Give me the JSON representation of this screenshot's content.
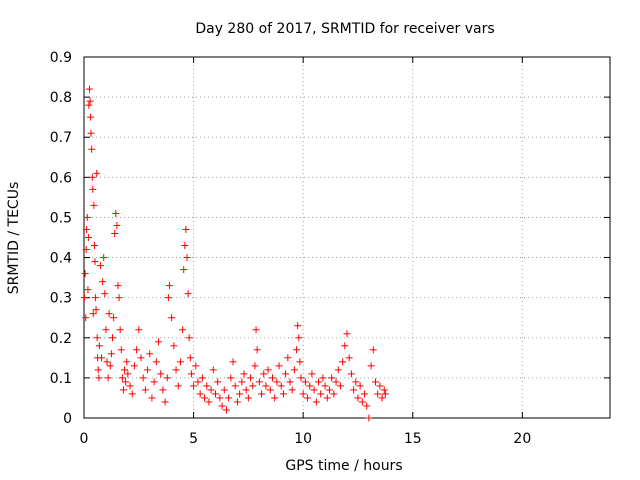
{
  "chart_data": {
    "type": "scatter",
    "title": "Day 280 of 2017, SRMTID for receiver vars",
    "xlabel": "GPS time / hours",
    "ylabel": "SRMTID / TECUs",
    "xlim": [
      0,
      24
    ],
    "ylim": [
      0,
      0.9
    ],
    "xticks": [
      0,
      5,
      10,
      15,
      20
    ],
    "yticks": [
      0,
      0.1,
      0.2,
      0.3,
      0.4,
      0.5,
      0.6,
      0.7,
      0.8,
      0.9
    ],
    "grid": true,
    "marker": "plus",
    "color": "#ff0000",
    "series": [
      {
        "name": "SRMTID",
        "points": [
          [
            0.02,
            0.3
          ],
          [
            0.05,
            0.36
          ],
          [
            0.08,
            0.25
          ],
          [
            0.1,
            0.42
          ],
          [
            0.12,
            0.47
          ],
          [
            0.15,
            0.5
          ],
          [
            0.18,
            0.32
          ],
          [
            0.2,
            0.45
          ],
          [
            0.22,
            0.78
          ],
          [
            0.25,
            0.82
          ],
          [
            0.28,
            0.79
          ],
          [
            0.3,
            0.75
          ],
          [
            0.32,
            0.71
          ],
          [
            0.35,
            0.67
          ],
          [
            0.38,
            0.6
          ],
          [
            0.4,
            0.57
          ],
          [
            0.42,
            0.26
          ],
          [
            0.45,
            0.53
          ],
          [
            0.48,
            0.43
          ],
          [
            0.5,
            0.39
          ],
          [
            0.52,
            0.3
          ],
          [
            0.55,
            0.27
          ],
          [
            0.58,
            0.61
          ],
          [
            0.6,
            0.2
          ],
          [
            0.62,
            0.15
          ],
          [
            0.65,
            0.12
          ],
          [
            0.68,
            0.1
          ],
          [
            0.7,
            0.18
          ],
          [
            0.75,
            0.38
          ],
          [
            0.8,
            0.15
          ],
          [
            0.85,
            0.34
          ],
          [
            0.9,
            0.4
          ],
          [
            0.95,
            0.31
          ],
          [
            1.0,
            0.22
          ],
          [
            1.05,
            0.14
          ],
          [
            1.1,
            0.1
          ],
          [
            1.15,
            0.26
          ],
          [
            1.2,
            0.13
          ],
          [
            1.25,
            0.16
          ],
          [
            1.3,
            0.2
          ],
          [
            1.35,
            0.25
          ],
          [
            1.4,
            0.46
          ],
          [
            1.45,
            0.51
          ],
          [
            1.5,
            0.48
          ],
          [
            1.55,
            0.33
          ],
          [
            1.6,
            0.3
          ],
          [
            1.65,
            0.22
          ],
          [
            1.7,
            0.17
          ],
          [
            1.75,
            0.1
          ],
          [
            1.8,
            0.07
          ],
          [
            1.85,
            0.12
          ],
          [
            1.9,
            0.09
          ],
          [
            1.95,
            0.14
          ],
          [
            2.0,
            0.11
          ],
          [
            2.1,
            0.08
          ],
          [
            2.2,
            0.06
          ],
          [
            2.3,
            0.13
          ],
          [
            2.4,
            0.17
          ],
          [
            2.5,
            0.22
          ],
          [
            2.6,
            0.15
          ],
          [
            2.7,
            0.1
          ],
          [
            2.8,
            0.07
          ],
          [
            2.9,
            0.12
          ],
          [
            3.0,
            0.16
          ],
          [
            3.1,
            0.05
          ],
          [
            3.2,
            0.09
          ],
          [
            3.3,
            0.14
          ],
          [
            3.4,
            0.19
          ],
          [
            3.5,
            0.11
          ],
          [
            3.6,
            0.07
          ],
          [
            3.7,
            0.04
          ],
          [
            3.8,
            0.1
          ],
          [
            3.85,
            0.3
          ],
          [
            3.9,
            0.33
          ],
          [
            4.0,
            0.25
          ],
          [
            4.1,
            0.18
          ],
          [
            4.2,
            0.12
          ],
          [
            4.3,
            0.08
          ],
          [
            4.4,
            0.14
          ],
          [
            4.5,
            0.22
          ],
          [
            4.55,
            0.37
          ],
          [
            4.6,
            0.43
          ],
          [
            4.65,
            0.47
          ],
          [
            4.7,
            0.4
          ],
          [
            4.75,
            0.31
          ],
          [
            4.8,
            0.2
          ],
          [
            4.85,
            0.15
          ],
          [
            4.9,
            0.11
          ],
          [
            5.0,
            0.08
          ],
          [
            5.1,
            0.13
          ],
          [
            5.2,
            0.09
          ],
          [
            5.3,
            0.06
          ],
          [
            5.4,
            0.1
          ],
          [
            5.5,
            0.05
          ],
          [
            5.6,
            0.08
          ],
          [
            5.7,
            0.04
          ],
          [
            5.8,
            0.07
          ],
          [
            5.9,
            0.12
          ],
          [
            6.0,
            0.06
          ],
          [
            6.1,
            0.09
          ],
          [
            6.2,
            0.05
          ],
          [
            6.3,
            0.03
          ],
          [
            6.4,
            0.07
          ],
          [
            6.5,
            0.02
          ],
          [
            6.6,
            0.05
          ],
          [
            6.7,
            0.1
          ],
          [
            6.8,
            0.14
          ],
          [
            6.9,
            0.08
          ],
          [
            7.0,
            0.04
          ],
          [
            7.1,
            0.06
          ],
          [
            7.2,
            0.09
          ],
          [
            7.3,
            0.11
          ],
          [
            7.4,
            0.07
          ],
          [
            7.5,
            0.05
          ],
          [
            7.6,
            0.1
          ],
          [
            7.7,
            0.08
          ],
          [
            7.8,
            0.13
          ],
          [
            7.85,
            0.22
          ],
          [
            7.9,
            0.17
          ],
          [
            8.0,
            0.09
          ],
          [
            8.1,
            0.06
          ],
          [
            8.2,
            0.11
          ],
          [
            8.3,
            0.08
          ],
          [
            8.4,
            0.12
          ],
          [
            8.5,
            0.07
          ],
          [
            8.6,
            0.1
          ],
          [
            8.7,
            0.05
          ],
          [
            8.8,
            0.09
          ],
          [
            8.9,
            0.13
          ],
          [
            9.0,
            0.08
          ],
          [
            9.1,
            0.06
          ],
          [
            9.2,
            0.11
          ],
          [
            9.3,
            0.15
          ],
          [
            9.4,
            0.09
          ],
          [
            9.5,
            0.07
          ],
          [
            9.6,
            0.12
          ],
          [
            9.7,
            0.17
          ],
          [
            9.75,
            0.23
          ],
          [
            9.8,
            0.2
          ],
          [
            9.85,
            0.14
          ],
          [
            9.9,
            0.1
          ],
          [
            10.0,
            0.06
          ],
          [
            10.1,
            0.09
          ],
          [
            10.2,
            0.05
          ],
          [
            10.3,
            0.08
          ],
          [
            10.4,
            0.11
          ],
          [
            10.5,
            0.07
          ],
          [
            10.6,
            0.04
          ],
          [
            10.7,
            0.09
          ],
          [
            10.8,
            0.06
          ],
          [
            10.9,
            0.1
          ],
          [
            11.0,
            0.08
          ],
          [
            11.1,
            0.05
          ],
          [
            11.2,
            0.07
          ],
          [
            11.3,
            0.1
          ],
          [
            11.4,
            0.06
          ],
          [
            11.5,
            0.09
          ],
          [
            11.6,
            0.12
          ],
          [
            11.7,
            0.08
          ],
          [
            11.8,
            0.14
          ],
          [
            11.9,
            0.18
          ],
          [
            12.0,
            0.21
          ],
          [
            12.1,
            0.15
          ],
          [
            12.2,
            0.11
          ],
          [
            12.3,
            0.07
          ],
          [
            12.4,
            0.09
          ],
          [
            12.5,
            0.05
          ],
          [
            12.6,
            0.08
          ],
          [
            12.7,
            0.04
          ],
          [
            12.8,
            0.06
          ],
          [
            12.9,
            0.03
          ],
          [
            13.0,
            0.0
          ],
          [
            13.1,
            0.13
          ],
          [
            13.2,
            0.17
          ],
          [
            13.3,
            0.09
          ],
          [
            13.4,
            0.06
          ],
          [
            13.5,
            0.08
          ],
          [
            13.6,
            0.05
          ],
          [
            13.7,
            0.07
          ],
          [
            13.75,
            0.06
          ]
        ]
      }
    ]
  }
}
